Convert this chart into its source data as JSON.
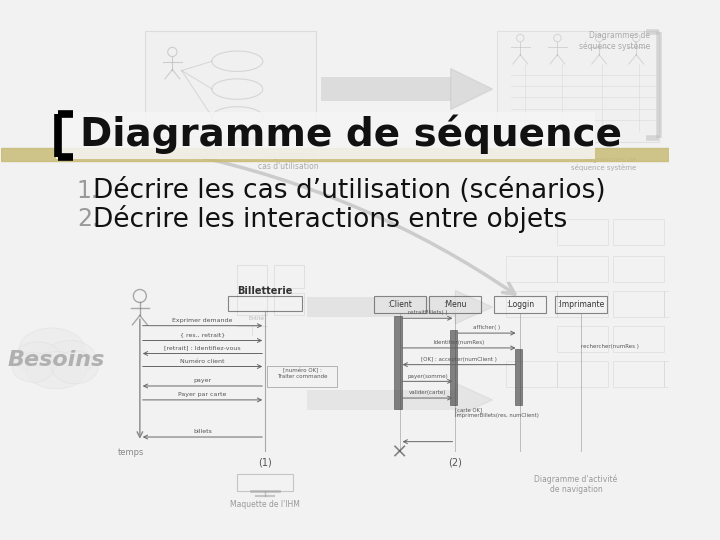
{
  "title": "Diagramme de séquence",
  "items": [
    "Décrire les cas d’utilisation (scénarios)",
    "Décrire les interactions entre objets"
  ],
  "slide_bg": "#f2f2f2",
  "bracket_color": "#000000",
  "title_fontsize": 28,
  "item_fontsize": 19,
  "number_color": "#999999",
  "stripe_color": "#c8bc78",
  "stripe_alpha": 0.85,
  "besoins_text_color": "#b0b0b0"
}
